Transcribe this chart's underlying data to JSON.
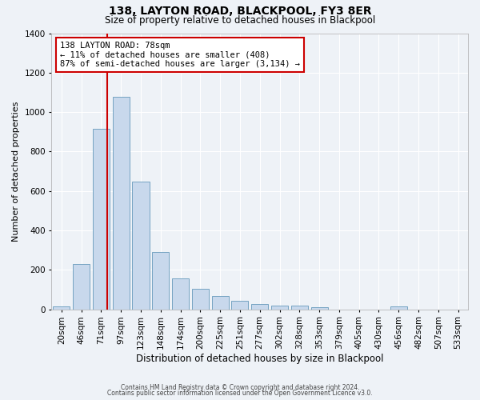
{
  "title": "138, LAYTON ROAD, BLACKPOOL, FY3 8ER",
  "subtitle": "Size of property relative to detached houses in Blackpool",
  "xlabel": "Distribution of detached houses by size in Blackpool",
  "ylabel": "Number of detached properties",
  "bar_color": "#c8d8ec",
  "bar_edge_color": "#6699bb",
  "background_color": "#eef2f7",
  "grid_color": "#ffffff",
  "vline_color": "#cc0000",
  "bin_labels": [
    "20sqm",
    "46sqm",
    "71sqm",
    "97sqm",
    "123sqm",
    "148sqm",
    "174sqm",
    "200sqm",
    "225sqm",
    "251sqm",
    "277sqm",
    "302sqm",
    "328sqm",
    "353sqm",
    "379sqm",
    "405sqm",
    "430sqm",
    "456sqm",
    "482sqm",
    "507sqm",
    "533sqm"
  ],
  "bar_heights": [
    15,
    228,
    916,
    1078,
    649,
    290,
    158,
    105,
    68,
    42,
    27,
    18,
    18,
    10,
    0,
    0,
    0,
    15,
    0,
    0,
    0
  ],
  "ylim": [
    0,
    1400
  ],
  "yticks": [
    0,
    200,
    400,
    600,
    800,
    1000,
    1200,
    1400
  ],
  "vline_bin_index": 2,
  "annotation_title": "138 LAYTON ROAD: 78sqm",
  "annotation_line1": "← 11% of detached houses are smaller (408)",
  "annotation_line2": "87% of semi-detached houses are larger (3,134) →",
  "footer1": "Contains HM Land Registry data © Crown copyright and database right 2024.",
  "footer2": "Contains public sector information licensed under the Open Government Licence v3.0."
}
